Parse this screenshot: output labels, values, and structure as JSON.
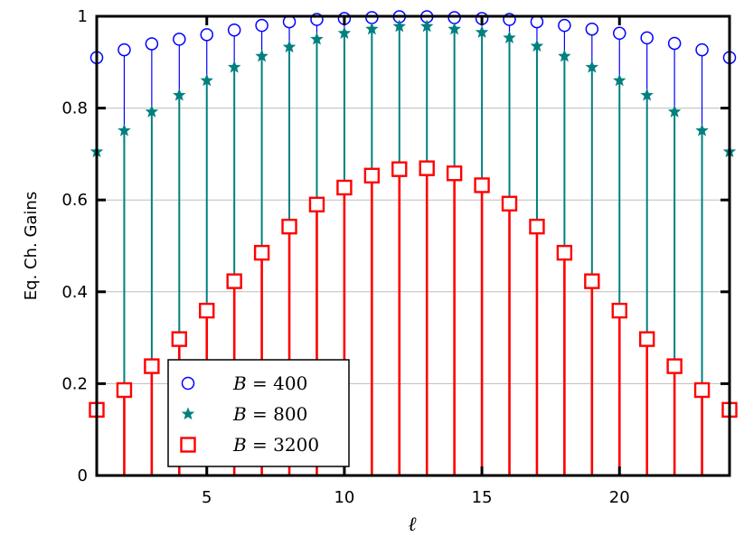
{
  "chart_data": {
    "type": "stem",
    "xlabel": "ℓ",
    "ylabel": "Eq. Ch. Gains",
    "xlim": [
      1,
      24
    ],
    "ylim": [
      0,
      1
    ],
    "xticks": [
      5,
      10,
      15,
      20
    ],
    "yticks": [
      0,
      0.2,
      0.4,
      0.6,
      0.8,
      1
    ],
    "ytick_labels": [
      "0",
      "0.2",
      "0.4",
      "0.6",
      "0.8",
      "1"
    ],
    "grid": "horizontal",
    "legend_position": "bottom-left",
    "x": [
      1,
      2,
      3,
      4,
      5,
      6,
      7,
      8,
      9,
      10,
      11,
      12,
      13,
      14,
      15,
      16,
      17,
      18,
      19,
      20,
      21,
      22,
      23,
      24
    ],
    "series": [
      {
        "name": "B = 400",
        "var": "B",
        "value_label": "400",
        "marker": "circle",
        "color": "#0000ff",
        "values": [
          0.91,
          0.927,
          0.94,
          0.95,
          0.96,
          0.97,
          0.98,
          0.988,
          0.993,
          0.995,
          0.997,
          0.999,
          0.999,
          0.997,
          0.995,
          0.993,
          0.988,
          0.98,
          0.972,
          0.963,
          0.953,
          0.941,
          0.927,
          0.91
        ]
      },
      {
        "name": "B = 800",
        "var": "B",
        "value_label": "800",
        "marker": "star",
        "color": "#008080",
        "values": [
          0.705,
          0.751,
          0.792,
          0.828,
          0.86,
          0.889,
          0.913,
          0.933,
          0.95,
          0.963,
          0.972,
          0.978,
          0.978,
          0.972,
          0.965,
          0.953,
          0.935,
          0.913,
          0.889,
          0.86,
          0.828,
          0.792,
          0.751,
          0.705
        ]
      },
      {
        "name": "B = 3200",
        "var": "B",
        "value_label": "3200",
        "marker": "square",
        "color": "#ff0000",
        "values": [
          0.143,
          0.186,
          0.238,
          0.297,
          0.359,
          0.423,
          0.485,
          0.542,
          0.59,
          0.627,
          0.653,
          0.667,
          0.669,
          0.658,
          0.632,
          0.592,
          0.542,
          0.485,
          0.423,
          0.359,
          0.297,
          0.238,
          0.186,
          0.143
        ]
      }
    ]
  }
}
